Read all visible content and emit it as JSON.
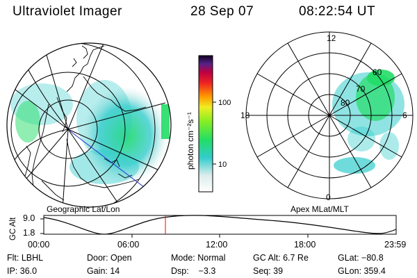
{
  "header": {
    "title": "Ultraviolet Imager",
    "date": "28 Sep 07",
    "time": "08:22:54 UT"
  },
  "colorbar": {
    "unit_label": "photon cm⁻²s⁻¹",
    "ticks": [
      "100",
      "10"
    ]
  },
  "left_panel": {
    "caption": "Geographic Lat/Lon"
  },
  "right_panel": {
    "caption": "Apex MLat/MLT",
    "mlt_labels": {
      "top": "12",
      "left": "18",
      "right": "6",
      "bottom": "0"
    },
    "lat_labels": [
      "60",
      "70",
      "80"
    ]
  },
  "altitude_plot": {
    "axis_label": "GC Alt",
    "y_ticks": [
      "9.0",
      "1.8"
    ],
    "x_ticks": [
      "00:00",
      "06:00",
      "12:00",
      "18:00",
      "23:59"
    ],
    "current_marker_utc": "08:22:54"
  },
  "info": {
    "flt": "Flt: LBHL",
    "door": "Door: Open",
    "mode": "Mode: Normal",
    "gc_alt": "GC Alt: 6.7 Re",
    "glat": "GLat: −80.8",
    "ip": "IP: 36.0",
    "gain": "Gain: 14",
    "dsp": "Dsp:    −3.3",
    "seq": "Seq: 39",
    "glon": "GLon: 359.4"
  },
  "colors": {
    "background": "#ffffff",
    "aurora_green": "#22dd66",
    "aurora_cyan": "#33ccdd",
    "marker": "#ff0000",
    "track_line": "#2233cc"
  }
}
